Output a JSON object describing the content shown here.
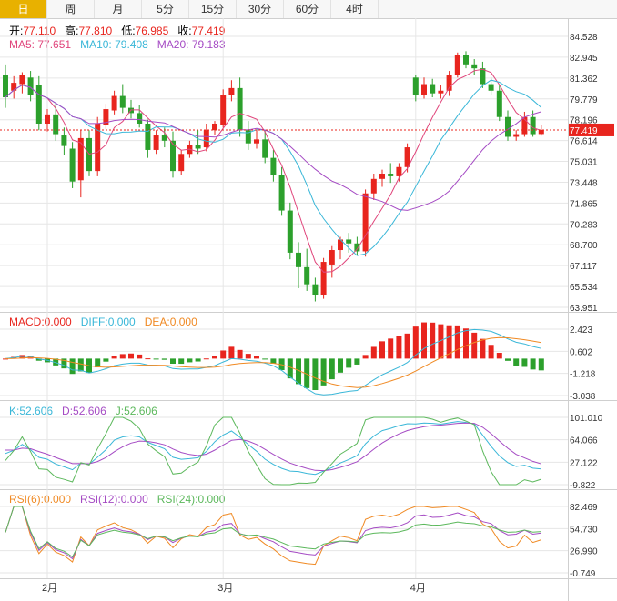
{
  "tabs": [
    "日",
    "周",
    "月",
    "5分",
    "15分",
    "30分",
    "60分",
    "4时"
  ],
  "active_tab": 0,
  "ohlc_readout": {
    "open_label": "开:",
    "open": "77.110",
    "high_label": "高:",
    "high": "77.810",
    "low_label": "低:",
    "low": "76.985",
    "close_label": "收:",
    "close": "77.419"
  },
  "ma_readout": {
    "ma5_label": "MA5:",
    "ma5": "77.651",
    "ma10_label": "MA10:",
    "ma10": "79.408",
    "ma20_label": "MA20:",
    "ma20": "79.183"
  },
  "macd_readout": {
    "macd_label": "MACD:",
    "macd": "0.000",
    "diff_label": "DIFF:",
    "diff": "0.000",
    "dea_label": "DEA:",
    "dea": "0.000"
  },
  "kdj_readout": {
    "k_label": "K:",
    "k": "52.606",
    "d_label": "D:",
    "d": "52.606",
    "j_label": "J:",
    "j": "52.606"
  },
  "rsi_readout": {
    "rsi6_label": "RSI(6):",
    "rsi6": "0.000",
    "rsi12_label": "RSI(12):",
    "rsi12": "0.000",
    "rsi24_label": "RSI(24):",
    "rsi24": "0.000"
  },
  "colors": {
    "up": "#e8251e",
    "down": "#2ca02c",
    "ma5": "#e0457b",
    "ma10": "#3ab7d8",
    "ma20": "#a54bc4",
    "diff": "#3ab7d8",
    "dea": "#f08a24",
    "k": "#3ab7d8",
    "d": "#a54bc4",
    "j": "#5cb85c",
    "rsi6": "#f08a24",
    "rsi12": "#a54bc4",
    "rsi24": "#5cb85c",
    "grid": "#e6e6e6",
    "last_price": "#e8251e"
  },
  "chart_data": {
    "type": "candlestick",
    "price_ticks": [
      "84.528",
      "82.945",
      "81.362",
      "79.779",
      "78.196",
      "76.614",
      "75.031",
      "73.448",
      "71.865",
      "70.283",
      "68.700",
      "67.117",
      "65.534",
      "63.951"
    ],
    "price_range": [
      63.951,
      84.528
    ],
    "last_price": "77.419",
    "x_labels": [
      {
        "label": "2月",
        "index": 5
      },
      {
        "label": "3月",
        "index": 26
      },
      {
        "label": "4月",
        "index": 49
      }
    ],
    "candles": [
      {
        "o": 81.6,
        "h": 82.4,
        "c": 79.9,
        "l": 79.1
      },
      {
        "o": 80.4,
        "h": 81.5,
        "c": 81.0,
        "l": 79.8
      },
      {
        "o": 80.9,
        "h": 81.8,
        "c": 81.6,
        "l": 80.2
      },
      {
        "o": 81.4,
        "h": 81.9,
        "c": 80.1,
        "l": 79.6
      },
      {
        "o": 80.8,
        "h": 81.5,
        "c": 77.9,
        "l": 77.4
      },
      {
        "o": 77.9,
        "h": 79.0,
        "c": 78.6,
        "l": 77.3
      },
      {
        "o": 78.6,
        "h": 79.4,
        "c": 77.1,
        "l": 76.6
      },
      {
        "o": 77.0,
        "h": 77.6,
        "c": 76.2,
        "l": 75.5
      },
      {
        "o": 76.0,
        "h": 76.5,
        "c": 73.5,
        "l": 73.0
      },
      {
        "o": 73.6,
        "h": 77.4,
        "c": 76.8,
        "l": 72.3
      },
      {
        "o": 76.8,
        "h": 77.4,
        "c": 74.3,
        "l": 73.9
      },
      {
        "o": 74.3,
        "h": 78.4,
        "c": 77.9,
        "l": 73.9
      },
      {
        "o": 77.8,
        "h": 79.4,
        "c": 79.0,
        "l": 77.5
      },
      {
        "o": 78.9,
        "h": 80.4,
        "c": 80.0,
        "l": 78.6
      },
      {
        "o": 80.0,
        "h": 80.9,
        "c": 79.1,
        "l": 78.7
      },
      {
        "o": 79.1,
        "h": 79.7,
        "c": 78.7,
        "l": 78.3
      },
      {
        "o": 78.7,
        "h": 79.3,
        "c": 77.9,
        "l": 77.6
      },
      {
        "o": 77.9,
        "h": 78.2,
        "c": 75.9,
        "l": 75.3
      },
      {
        "o": 75.9,
        "h": 77.4,
        "c": 77.0,
        "l": 75.6
      },
      {
        "o": 77.0,
        "h": 77.6,
        "c": 76.6,
        "l": 76.1
      },
      {
        "o": 76.6,
        "h": 77.3,
        "c": 74.3,
        "l": 73.8
      },
      {
        "o": 74.3,
        "h": 75.9,
        "c": 75.6,
        "l": 74.0
      },
      {
        "o": 75.6,
        "h": 76.6,
        "c": 76.3,
        "l": 75.3
      },
      {
        "o": 76.3,
        "h": 77.4,
        "c": 76.0,
        "l": 75.6
      },
      {
        "o": 76.1,
        "h": 77.9,
        "c": 77.4,
        "l": 75.8
      },
      {
        "o": 77.4,
        "h": 78.1,
        "c": 77.9,
        "l": 77.0
      },
      {
        "o": 77.8,
        "h": 80.5,
        "c": 80.1,
        "l": 77.6
      },
      {
        "o": 80.1,
        "h": 81.2,
        "c": 80.6,
        "l": 79.6
      },
      {
        "o": 80.6,
        "h": 81.4,
        "c": 77.4,
        "l": 76.9
      },
      {
        "o": 77.4,
        "h": 78.1,
        "c": 76.4,
        "l": 75.9
      },
      {
        "o": 76.4,
        "h": 77.4,
        "c": 76.7,
        "l": 76.0
      },
      {
        "o": 76.7,
        "h": 77.4,
        "c": 75.3,
        "l": 74.9
      },
      {
        "o": 75.3,
        "h": 75.9,
        "c": 74.0,
        "l": 73.5
      },
      {
        "o": 74.0,
        "h": 74.6,
        "c": 71.3,
        "l": 70.9
      },
      {
        "o": 71.3,
        "h": 71.9,
        "c": 68.1,
        "l": 67.6
      },
      {
        "o": 68.1,
        "h": 68.9,
        "c": 67.0,
        "l": 65.4
      },
      {
        "o": 67.0,
        "h": 68.4,
        "c": 65.7,
        "l": 65.2
      },
      {
        "o": 65.7,
        "h": 66.2,
        "c": 64.9,
        "l": 64.4
      },
      {
        "o": 64.9,
        "h": 67.7,
        "c": 67.4,
        "l": 64.6
      },
      {
        "o": 67.2,
        "h": 68.6,
        "c": 68.3,
        "l": 66.2
      },
      {
        "o": 68.3,
        "h": 69.3,
        "c": 69.1,
        "l": 67.6
      },
      {
        "o": 69.1,
        "h": 69.6,
        "c": 68.8,
        "l": 68.1
      },
      {
        "o": 68.8,
        "h": 69.3,
        "c": 68.2,
        "l": 67.9
      },
      {
        "o": 68.2,
        "h": 72.9,
        "c": 72.6,
        "l": 67.8
      },
      {
        "o": 72.6,
        "h": 74.1,
        "c": 73.7,
        "l": 72.1
      },
      {
        "o": 73.7,
        "h": 74.4,
        "c": 74.1,
        "l": 73.1
      },
      {
        "o": 74.1,
        "h": 74.9,
        "c": 73.9,
        "l": 73.4
      },
      {
        "o": 73.9,
        "h": 74.9,
        "c": 74.6,
        "l": 73.5
      },
      {
        "o": 74.6,
        "h": 76.4,
        "c": 76.1,
        "l": 74.2
      },
      {
        "o": 81.4,
        "h": 81.6,
        "c": 80.1,
        "l": 79.6
      },
      {
        "o": 80.1,
        "h": 81.4,
        "c": 80.9,
        "l": 79.8
      },
      {
        "o": 80.9,
        "h": 81.3,
        "c": 80.2,
        "l": 79.9
      },
      {
        "o": 80.2,
        "h": 80.8,
        "c": 80.4,
        "l": 79.8
      },
      {
        "o": 80.4,
        "h": 81.9,
        "c": 81.6,
        "l": 80.0
      },
      {
        "o": 81.6,
        "h": 83.3,
        "c": 83.1,
        "l": 81.4
      },
      {
        "o": 83.1,
        "h": 83.4,
        "c": 82.4,
        "l": 82.1
      },
      {
        "o": 82.4,
        "h": 82.8,
        "c": 82.1,
        "l": 81.6
      },
      {
        "o": 82.1,
        "h": 82.6,
        "c": 80.9,
        "l": 80.6
      },
      {
        "o": 80.9,
        "h": 81.4,
        "c": 80.4,
        "l": 80.1
      },
      {
        "o": 80.4,
        "h": 80.8,
        "c": 78.4,
        "l": 78.1
      },
      {
        "o": 78.4,
        "h": 78.9,
        "c": 76.9,
        "l": 76.6
      },
      {
        "o": 76.9,
        "h": 77.4,
        "c": 77.1,
        "l": 76.6
      },
      {
        "o": 77.1,
        "h": 78.8,
        "c": 78.4,
        "l": 76.9
      },
      {
        "o": 78.4,
        "h": 78.9,
        "c": 77.1,
        "l": 76.9
      },
      {
        "o": 77.11,
        "h": 77.81,
        "c": 77.419,
        "l": 76.985
      }
    ],
    "macd": {
      "ticks": [
        "2.423",
        "0.602",
        "-1.218",
        "-3.038"
      ],
      "range": [
        -3.038,
        2.423
      ]
    },
    "kdj": {
      "ticks": [
        "101.010",
        "64.066",
        "27.122",
        "-9.822"
      ],
      "range": [
        -9.822,
        101.01
      ]
    },
    "rsi": {
      "ticks": [
        "82.469",
        "54.730",
        "26.990",
        "-0.749"
      ],
      "range": [
        -0.749,
        82.469
      ]
    }
  }
}
